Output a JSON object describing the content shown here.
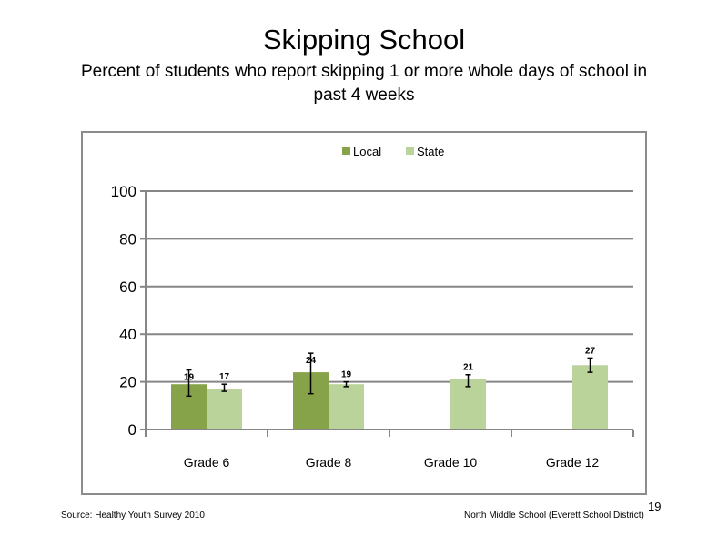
{
  "slide": {
    "title": "Skipping School",
    "subtitle": "Percent of students who report skipping 1 or more whole days of school in past 4 weeks",
    "source": "Source: Healthy Youth Survey 2010",
    "school": "North Middle  School (Everett School District)",
    "slide_number": "19"
  },
  "chart_data": {
    "type": "bar",
    "categories": [
      "Grade 6",
      "Grade 8",
      "Grade 10",
      "Grade 12"
    ],
    "series": [
      {
        "name": "Local",
        "color": "#86a34a",
        "values": [
          19,
          24,
          null,
          null
        ],
        "error_low": [
          14,
          15,
          null,
          null
        ],
        "error_high": [
          25,
          32,
          null,
          null
        ]
      },
      {
        "name": "State",
        "color": "#bad39a",
        "values": [
          17,
          19,
          21,
          27
        ],
        "error_low": [
          16,
          18,
          18,
          24
        ],
        "error_high": [
          19,
          20,
          23,
          30
        ]
      }
    ],
    "data_labels": [
      [
        "19",
        "24",
        "",
        ""
      ],
      [
        "17",
        "19",
        "21",
        "27"
      ]
    ],
    "ylim": [
      0,
      100
    ],
    "yticks": [
      0,
      20,
      40,
      60,
      80,
      100
    ],
    "grid": true,
    "legend": "top"
  }
}
